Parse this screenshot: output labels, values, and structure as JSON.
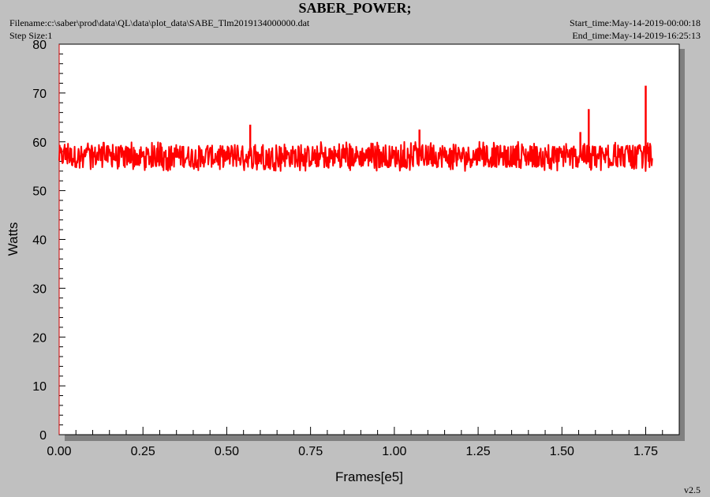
{
  "header": {
    "title": "SABER_POWER;",
    "filename": "Filename:c:\\saber\\prod\\data\\QL\\data\\plot_data\\SABE_Tlm2019134000000.dat",
    "step_size": "Step Size:1",
    "start_time": "Start_time:May-14-2019-00:00:18",
    "end_time": "End_time:May-14-2019-16:25:13"
  },
  "footer": {
    "version": "v2.5"
  },
  "chart_data": {
    "type": "line",
    "title": "SABER_POWER;",
    "xlabel": "Frames[e5]",
    "ylabel": "Watts",
    "xlim": [
      0,
      1.85
    ],
    "ylim": [
      0,
      80
    ],
    "xticks": [
      "0.00",
      "0.25",
      "0.50",
      "0.75",
      "1.00",
      "1.25",
      "1.50",
      "1.75"
    ],
    "yticks": [
      "0",
      "10",
      "20",
      "30",
      "40",
      "50",
      "60",
      "70",
      "80"
    ],
    "series": [
      {
        "color": "#ff0000",
        "x_range": [
          0,
          1.77
        ],
        "band_low": 54,
        "band_high": 60,
        "typical": 57,
        "spikes": [
          {
            "x": 0.57,
            "y": 63.5
          },
          {
            "x": 1.075,
            "y": 62.5
          },
          {
            "x": 1.555,
            "y": 62
          },
          {
            "x": 1.58,
            "y": 66.7
          },
          {
            "x": 1.75,
            "y": 71.5
          }
        ]
      }
    ]
  }
}
